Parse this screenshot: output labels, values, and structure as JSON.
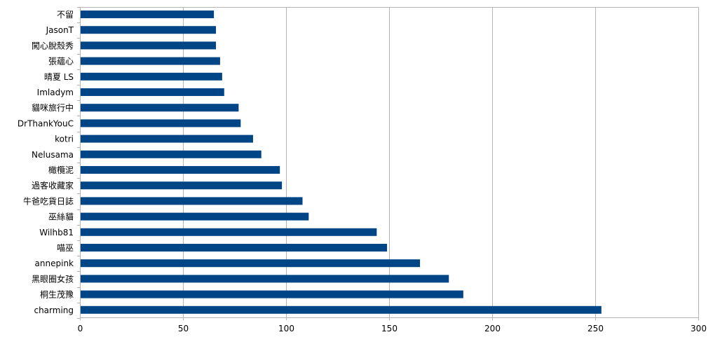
{
  "chart_data": {
    "type": "bar",
    "orientation": "horizontal",
    "title": "",
    "xlabel": "",
    "ylabel": "",
    "xlim": [
      0,
      300
    ],
    "x_ticks": [
      0,
      50,
      100,
      150,
      200,
      250,
      300
    ],
    "grid": "vertical",
    "legend": "none",
    "bar_color": "#004586",
    "grid_color": "#b3b3b3",
    "categories": [
      "不留",
      "JasonT",
      "闖心脫殼秀",
      "張蘊心",
      "晴夏 LS",
      "Imladym",
      "貓咪旅行中",
      "DrThankYouC",
      "kotri",
      "Nelusama",
      "橄欖泥",
      "過客收藏家",
      "牛爸吃貨日誌",
      "巫絲貓",
      "Wilhb81",
      "喵巫",
      "annepink",
      "黑眼圈女孩",
      "桐生茂豫",
      "charming"
    ],
    "values": [
      65,
      66,
      66,
      68,
      69,
      70,
      77,
      78,
      84,
      88,
      97,
      98,
      108,
      111,
      144,
      149,
      165,
      179,
      186,
      253
    ]
  }
}
